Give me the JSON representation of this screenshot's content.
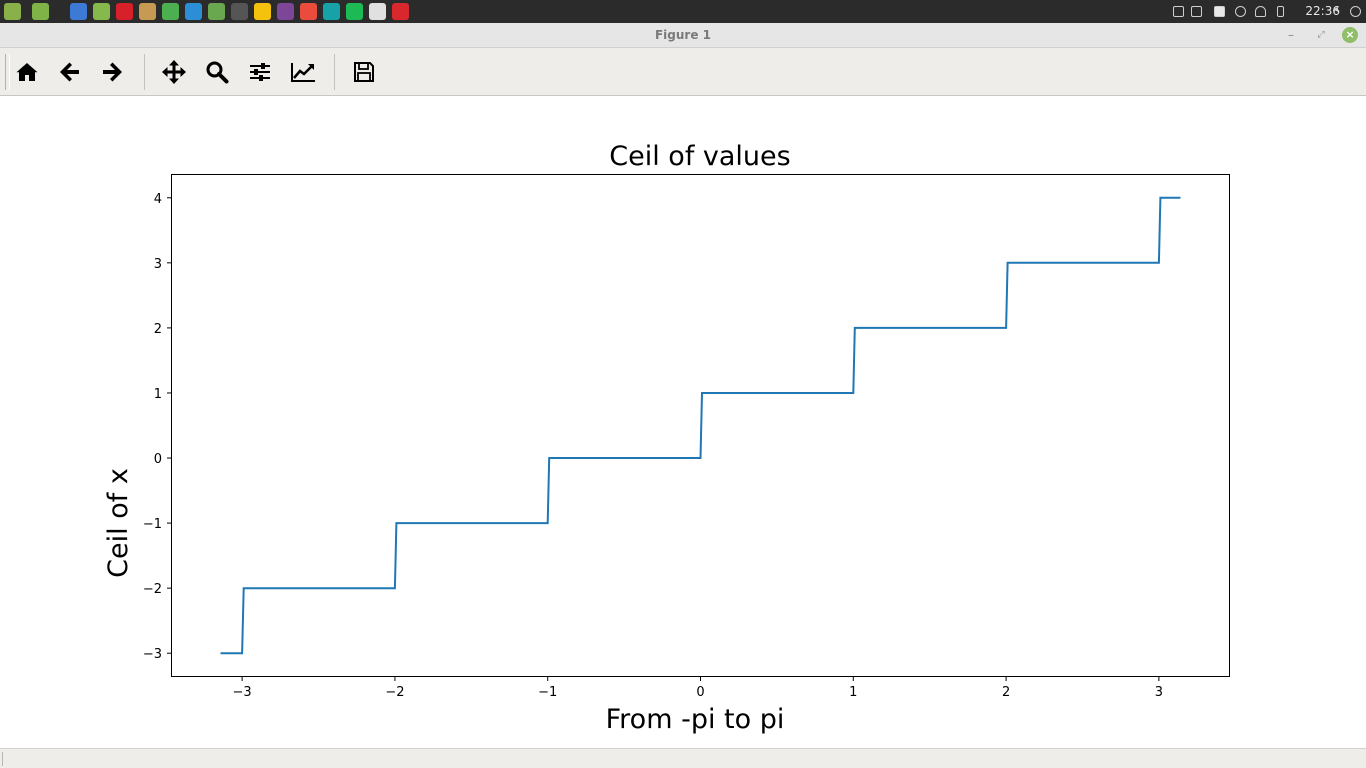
{
  "taskbar": {
    "clock": "22:36",
    "launcher_icons": [
      {
        "icon": "mint-menu-icon",
        "color": "#8ab04a"
      },
      {
        "icon": "desktop-icon",
        "color": "#7fb247"
      },
      {
        "icon": "screenshot-icon",
        "color": "#3d7ad6"
      },
      {
        "icon": "files-icon",
        "color": "#86b94b"
      },
      {
        "icon": "opera-icon",
        "color": "#d7202a"
      },
      {
        "icon": "archive-icon",
        "color": "#c79a54"
      },
      {
        "icon": "android-studio-icon",
        "color": "#4caf50"
      },
      {
        "icon": "wps-writer-icon",
        "color": "#2c8fd6"
      },
      {
        "icon": "texmaker-icon",
        "color": "#6aa84f"
      },
      {
        "icon": "sublime-text-icon",
        "color": "#555555"
      },
      {
        "icon": "slack-icon",
        "color": "#f4c20d"
      },
      {
        "icon": "tor-browser-icon",
        "color": "#7d4698"
      },
      {
        "icon": "brave-icon",
        "color": "#e94b3c"
      },
      {
        "icon": "arduino-icon",
        "color": "#17a2a8"
      },
      {
        "icon": "spotify-icon",
        "color": "#1db954"
      },
      {
        "icon": "steam-icon",
        "color": "#e0e0e0"
      },
      {
        "icon": "mega-icon",
        "color": "#d9272e"
      }
    ]
  },
  "window": {
    "title": "Figure 1"
  },
  "toolbar": {
    "buttons": [
      {
        "icon": "home-icon",
        "name": "home-button"
      },
      {
        "icon": "arrow-left-icon",
        "name": "back-button"
      },
      {
        "icon": "arrow-right-icon",
        "name": "forward-button"
      },
      {
        "icon": "move-icon",
        "name": "pan-button"
      },
      {
        "icon": "magnifier-icon",
        "name": "zoom-button"
      },
      {
        "icon": "sliders-icon",
        "name": "configure-subplots-button"
      },
      {
        "icon": "line-chart-icon",
        "name": "edit-axis-button"
      },
      {
        "icon": "floppy-disk-icon",
        "name": "save-button"
      }
    ]
  },
  "chart_data": {
    "type": "line",
    "title": "Ceil of values",
    "xlabel": "From -pi to pi",
    "ylabel": "Ceil of x",
    "xlim": [
      -3.459,
      3.459
    ],
    "ylim": [
      -3.35,
      4.35
    ],
    "xticks": [
      -3,
      -2,
      -1,
      0,
      1,
      2,
      3
    ],
    "yticks": [
      -3,
      -2,
      -1,
      0,
      1,
      2,
      3,
      4
    ],
    "xtick_labels": [
      "−3",
      "−2",
      "−1",
      "0",
      "1",
      "2",
      "3"
    ],
    "ytick_labels": [
      "−3",
      "−2",
      "−1",
      "0",
      "1",
      "2",
      "3",
      "4"
    ],
    "grid": false,
    "series_color": "#1f77b4",
    "series": [
      {
        "x": [
          -3.1416,
          -3.0,
          -2.99,
          -2.0,
          -1.99,
          -1.0,
          -0.99,
          0.0,
          0.01,
          1.0,
          1.01,
          2.0,
          2.01,
          3.0,
          3.01,
          3.1416
        ],
        "y": [
          -3,
          -3,
          -2,
          -2,
          -1,
          -1,
          0,
          0,
          1,
          1,
          2,
          2,
          3,
          3,
          4,
          4
        ]
      }
    ]
  }
}
